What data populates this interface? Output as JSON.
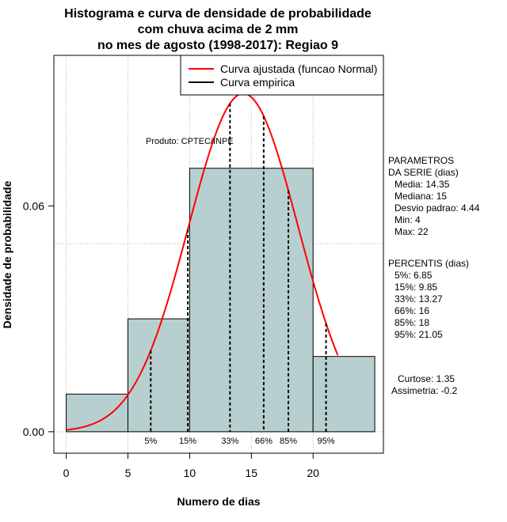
{
  "chart_data": {
    "type": "bar",
    "title_lines": [
      "Histograma e curva de densidade de probabilidade",
      "com chuva acima de 2 mm",
      "no mes de agosto (1998-2017): Regiao 9"
    ],
    "xlabel": "Numero de dias",
    "ylabel": "Densidade de probabilidade",
    "xlim": [
      -1,
      25.7
    ],
    "ylim": [
      -0.0057,
      0.1
    ],
    "x_ticks": [
      0,
      5,
      10,
      15,
      20
    ],
    "y_ticks": [
      0.0,
      0.06
    ],
    "y_tick_labels": [
      "0.00",
      "0.06"
    ],
    "bins": [
      {
        "x0": 0,
        "x1": 5,
        "density": 0.01
      },
      {
        "x0": 5,
        "x1": 10,
        "density": 0.03
      },
      {
        "x0": 10,
        "x1": 20,
        "density": 0.07
      },
      {
        "x0": 20,
        "x1": 25,
        "density": 0.02
      }
    ],
    "normal_fit": {
      "mean": 14.35,
      "sd": 4.44,
      "from": 0,
      "to": 22
    },
    "percentiles": [
      {
        "label": "5%",
        "value": 6.85
      },
      {
        "label": "15%",
        "value": 9.85
      },
      {
        "label": "33%",
        "value": 13.27
      },
      {
        "label": "66%",
        "value": 16
      },
      {
        "label": "85%",
        "value": 18
      },
      {
        "label": "95%",
        "value": 21.05
      }
    ],
    "legend": {
      "placement": "top-right",
      "entries": [
        {
          "label": "Curva ajustada (funcao Normal)",
          "color": "#ff0000"
        },
        {
          "label": "Curva empirica",
          "color": "#000000"
        }
      ]
    },
    "grid": true,
    "colors": {
      "bar_fill": "#b8cfcf",
      "curve": "#ff0000"
    },
    "annotation": "Produto: CPTEC/INPE",
    "side_panel": {
      "params_lines": [
        "PARAMETROS",
        "DA SERIE (dias)",
        "Media: 14.35",
        "Mediana: 15",
        "Desvio padrao: 4.44",
        "Min: 4",
        "Max: 22"
      ],
      "percentis_lines": [
        "PERCENTIS (dias)",
        "5%: 6.85",
        "15%: 9.85",
        "33%: 13.27",
        "66%: 16",
        "85%: 18",
        "95%: 21.05"
      ],
      "stats_lines": [
        "Curtose: 1.35",
        "Assimetria: -0.2"
      ]
    }
  }
}
